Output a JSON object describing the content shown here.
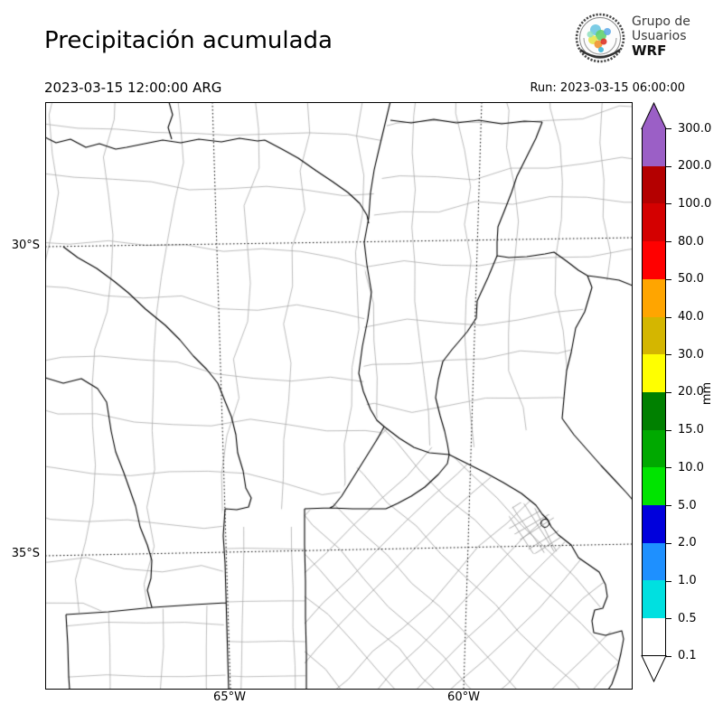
{
  "header": {
    "title": "Precipitación acumulada",
    "valid_time": "2023-03-15 12:00:00 ARG",
    "run_label": "Run: 2023-03-15 06:00:00"
  },
  "logo": {
    "line1": "Grupo de",
    "line2": "Usuarios",
    "line3": "WRF"
  },
  "axes": {
    "lat_labels": [
      "30°S",
      "35°S"
    ],
    "lon_labels": [
      "65°W",
      "60°W"
    ]
  },
  "colorbar": {
    "unit": "mm",
    "tick_labels": [
      "300.0",
      "200.0",
      "100.0",
      "80.0",
      "50.0",
      "40.0",
      "30.0",
      "20.0",
      "15.0",
      "10.0",
      "5.0",
      "2.0",
      "1.0",
      "0.5",
      "0.1"
    ],
    "segment_colors_top_to_bottom": [
      "#9B5FC6",
      "#B40000",
      "#D40000",
      "#FF0000",
      "#FFA500",
      "#D4B600",
      "#FFFF00",
      "#008000",
      "#00A900",
      "#00E400",
      "#0000DC",
      "#1E90FF",
      "#00E0E0",
      "#FFFFFF"
    ],
    "arrow_top_color": "#9B5FC6",
    "arrow_bottom_color": "#FFFFFF"
  }
}
